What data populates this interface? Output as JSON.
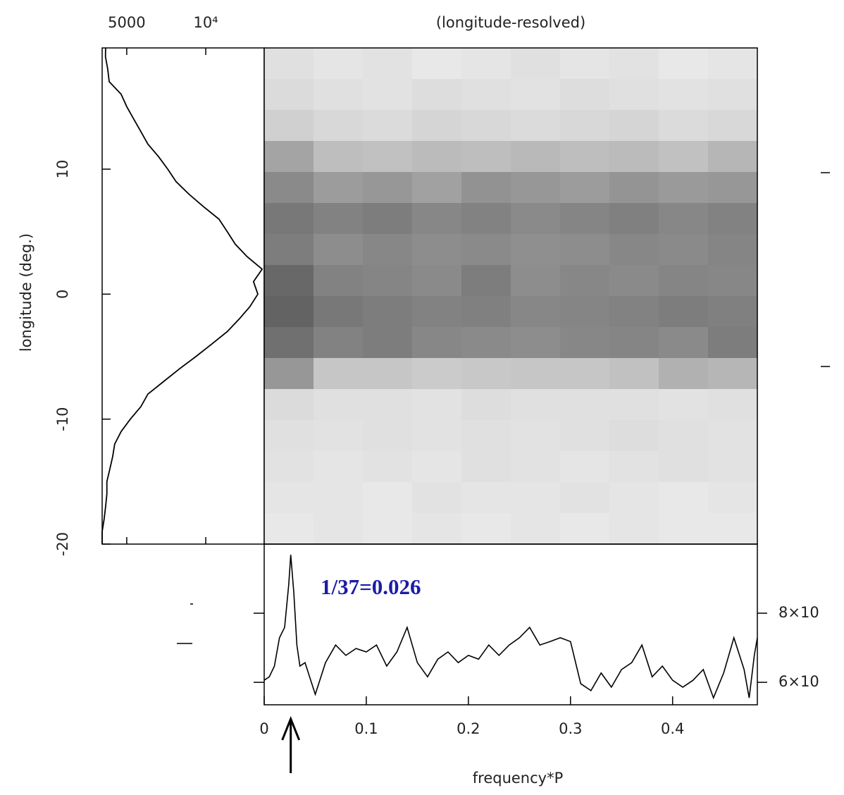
{
  "chart_data": [
    {
      "type": "profile",
      "ylabel": "longitude (deg.)",
      "xscale": "log",
      "color": "#000000",
      "y": [
        19.7,
        19,
        18,
        17,
        16,
        15,
        14,
        13,
        12,
        11,
        10,
        9,
        8,
        7,
        6,
        5,
        4,
        3,
        2,
        1,
        0,
        -1,
        -2,
        -3,
        -4,
        -5,
        -6,
        -7,
        -8,
        -9,
        -10,
        -11,
        -12,
        -13,
        -14,
        -15,
        -16,
        -17,
        -18,
        -19,
        -20
      ],
      "values": [
        4155,
        4150,
        4231,
        4287,
        4760,
        5000,
        5320,
        5660,
        6020,
        6610,
        7165,
        7705,
        8630,
        9800,
        11230,
        12080,
        12950,
        14370,
        16400,
        15200,
        15800,
        14730,
        13400,
        12080,
        10530,
        9165,
        7920,
        6900,
        6020,
        5660,
        5160,
        4760,
        4500,
        4420,
        4310,
        4200,
        4200,
        4155,
        4100,
        4030,
        4030
      ],
      "xlim": [
        4030,
        16700
      ],
      "xticks": [
        5000,
        {
          "value": 10000,
          "label": "10⁴"
        }
      ],
      "ylim": [
        -20,
        19.7
      ],
      "yticks": [
        -20,
        -10,
        0,
        10
      ]
    },
    {
      "type": "heatmap",
      "title": "(longitude-resolved)",
      "z": [
        [
          12,
          10,
          11,
          9,
          10,
          12,
          10,
          11,
          9,
          10
        ],
        [
          14,
          12,
          11,
          13,
          12,
          11,
          13,
          12,
          11,
          12
        ],
        [
          18,
          15,
          14,
          16,
          15,
          14,
          15,
          16,
          14,
          15
        ],
        [
          35,
          25,
          24,
          26,
          25,
          27,
          25,
          26,
          24,
          28
        ],
        [
          45,
          38,
          40,
          36,
          42,
          40,
          38,
          41,
          39,
          40
        ],
        [
          52,
          48,
          50,
          46,
          48,
          45,
          47,
          49,
          46,
          48
        ],
        [
          50,
          44,
          46,
          44,
          45,
          43,
          44,
          46,
          45,
          47
        ],
        [
          58,
          48,
          47,
          45,
          50,
          44,
          46,
          45,
          47,
          46
        ],
        [
          60,
          52,
          50,
          48,
          49,
          46,
          47,
          48,
          50,
          49
        ],
        [
          55,
          48,
          50,
          46,
          45,
          44,
          46,
          47,
          45,
          50
        ],
        [
          40,
          22,
          22,
          20,
          21,
          22,
          22,
          24,
          30,
          28
        ],
        [
          14,
          12,
          12,
          11,
          13,
          12,
          12,
          12,
          11,
          12
        ],
        [
          12,
          11,
          12,
          11,
          12,
          11,
          12,
          13,
          12,
          11
        ],
        [
          11,
          10,
          11,
          10,
          12,
          11,
          10,
          11,
          12,
          11
        ],
        [
          10,
          10,
          9,
          11,
          10,
          10,
          11,
          10,
          9,
          10
        ],
        [
          9,
          10,
          9,
          10,
          9,
          10,
          9,
          10,
          9,
          9
        ]
      ]
    },
    {
      "type": "line",
      "xlabel": "frequency*P",
      "annotation": "1/37=0.026",
      "arrow_at": 0.026,
      "color": "#000000",
      "x": [
        0,
        0.005,
        0.01,
        0.015,
        0.02,
        0.024,
        0.026,
        0.029,
        0.032,
        0.035,
        0.04,
        0.05,
        0.06,
        0.07,
        0.08,
        0.09,
        0.1,
        0.11,
        0.12,
        0.13,
        0.14,
        0.15,
        0.16,
        0.17,
        0.18,
        0.19,
        0.2,
        0.21,
        0.22,
        0.23,
        0.24,
        0.25,
        0.26,
        0.27,
        0.28,
        0.29,
        0.3,
        0.31,
        0.32,
        0.33,
        0.34,
        0.35,
        0.36,
        0.37,
        0.38,
        0.39,
        0.4,
        0.41,
        0.42,
        0.43,
        0.44,
        0.45,
        0.46,
        0.47,
        0.475,
        0.48,
        0.483
      ],
      "values": [
        60.6,
        61.6,
        64.7,
        72.9,
        75.9,
        88.2,
        96.9,
        86.1,
        70.8,
        64.7,
        65.7,
        56.5,
        65.7,
        70.8,
        67.8,
        69.8,
        68.8,
        70.8,
        64.7,
        68.8,
        75.9,
        65.7,
        61.6,
        66.7,
        68.8,
        65.7,
        67.8,
        66.7,
        70.8,
        67.8,
        70.8,
        72.9,
        75.9,
        70.8,
        71.8,
        72.9,
        71.8,
        59.6,
        57.6,
        62.7,
        58.6,
        63.7,
        65.7,
        70.8,
        61.6,
        64.7,
        60.6,
        58.6,
        60.6,
        63.7,
        55.5,
        62.7,
        72.9,
        63.7,
        55.5,
        67.8,
        72.9
      ],
      "xlim": [
        0,
        0.483
      ],
      "xticks": [
        0,
        0.1,
        0.2,
        0.3,
        0.4
      ],
      "ylim": [
        53.5,
        100
      ],
      "yticks": [
        {
          "value": 60,
          "label": "6×10"
        },
        {
          "value": 80,
          "label": "8×10"
        }
      ]
    }
  ]
}
